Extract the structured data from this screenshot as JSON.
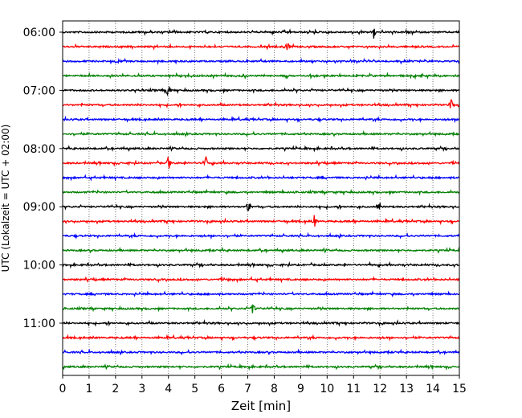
{
  "chart_data": {
    "type": "line",
    "title": "",
    "xlabel": "Zeit  [min]",
    "ylabel": "UTC (Lokalzeit = UTC + 02:00)",
    "xlim": [
      0,
      15
    ],
    "x_ticks": [
      "0",
      "1",
      "2",
      "3",
      "4",
      "5",
      "6",
      "7",
      "8",
      "9",
      "10",
      "11",
      "12",
      "13",
      "14",
      "15"
    ],
    "y_ticks": [
      "06:00",
      "07:00",
      "08:00",
      "09:00",
      "10:00",
      "11:00"
    ],
    "y_tick_trace_index": [
      0,
      4,
      8,
      12,
      16,
      20
    ],
    "grid": "vertical dotted",
    "colors": [
      "#000000",
      "#ff0000",
      "#0000ff",
      "#008000"
    ],
    "traces": [
      {
        "start": "06:00",
        "color": "#000000",
        "events_min": [
          11.75
        ]
      },
      {
        "start": "06:15",
        "color": "#ff0000",
        "events_min": [
          8.5
        ]
      },
      {
        "start": "06:30",
        "color": "#0000ff",
        "events_min": []
      },
      {
        "start": "06:45",
        "color": "#008000",
        "events_min": []
      },
      {
        "start": "07:00",
        "color": "#000000",
        "events_min": [
          4.0
        ]
      },
      {
        "start": "07:15",
        "color": "#ff0000",
        "events_min": [
          14.7
        ]
      },
      {
        "start": "07:30",
        "color": "#0000ff",
        "events_min": []
      },
      {
        "start": "07:45",
        "color": "#008000",
        "events_min": []
      },
      {
        "start": "08:00",
        "color": "#000000",
        "events_min": []
      },
      {
        "start": "08:15",
        "color": "#ff0000",
        "events_min": [
          4.0,
          5.4
        ]
      },
      {
        "start": "08:30",
        "color": "#0000ff",
        "events_min": []
      },
      {
        "start": "08:45",
        "color": "#008000",
        "events_min": []
      },
      {
        "start": "09:00",
        "color": "#000000",
        "events_min": [
          7.05,
          11.95
        ]
      },
      {
        "start": "09:15",
        "color": "#ff0000",
        "events_min": [
          9.5
        ]
      },
      {
        "start": "09:30",
        "color": "#0000ff",
        "events_min": []
      },
      {
        "start": "09:45",
        "color": "#008000",
        "events_min": []
      },
      {
        "start": "10:00",
        "color": "#000000",
        "events_min": []
      },
      {
        "start": "10:15",
        "color": "#ff0000",
        "events_min": []
      },
      {
        "start": "10:30",
        "color": "#0000ff",
        "events_min": []
      },
      {
        "start": "10:45",
        "color": "#008000",
        "events_min": [
          7.2
        ]
      },
      {
        "start": "11:00",
        "color": "#000000",
        "events_min": []
      },
      {
        "start": "11:15",
        "color": "#ff0000",
        "events_min": []
      },
      {
        "start": "11:30",
        "color": "#0000ff",
        "events_min": []
      },
      {
        "start": "11:45",
        "color": "#008000",
        "events_min": []
      }
    ]
  }
}
